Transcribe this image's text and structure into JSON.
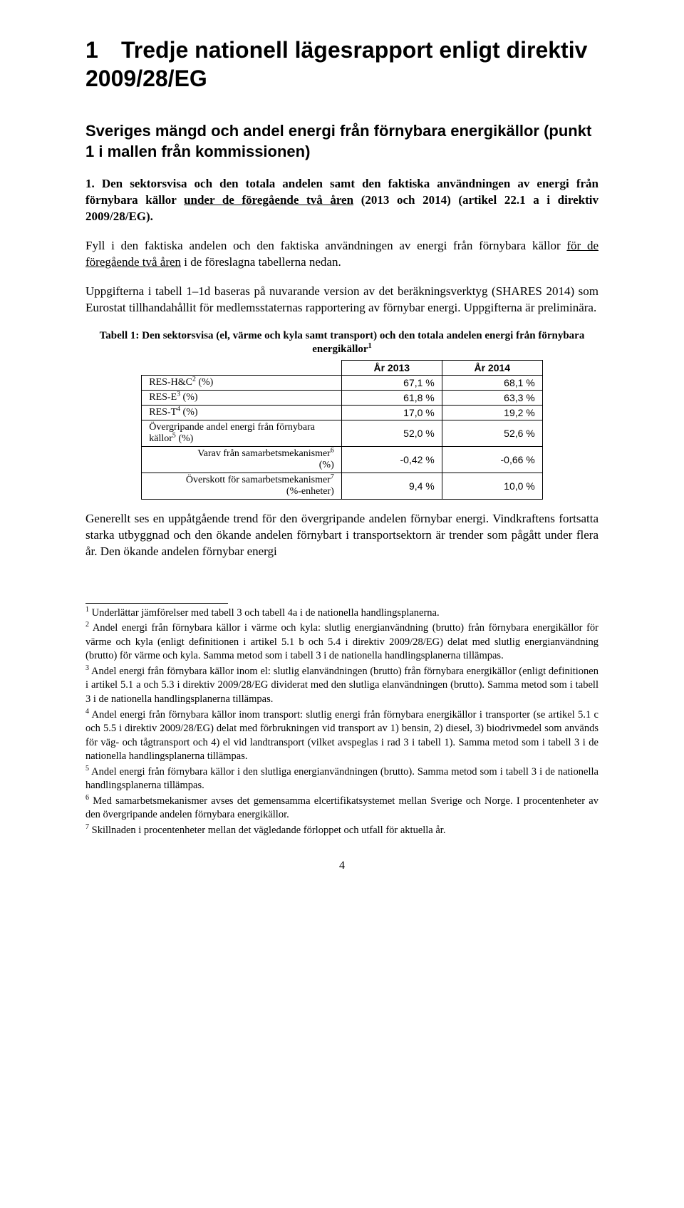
{
  "section_number": "1",
  "section_title_rest": "Tredje nationell lägesrapport enligt direktiv 2009/28/EG",
  "subheading": "Sveriges mängd och andel energi från förnybara energikällor (punkt 1 i mallen från kommissionen)",
  "question_lead": "1. Den sektorsvisa och den totala andelen samt den faktiska användningen av energi från förnybara källor ",
  "question_underlined": "under de föregående två åren",
  "question_tail": " (2013 och 2014) (artikel 22.1 a i direktiv 2009/28/EG).",
  "para2_lead": "Fyll i den faktiska andelen och den faktiska användningen av energi från förnybara källor ",
  "para2_underlined": "för de föregående två åren",
  "para2_tail": " i de föreslagna tabellerna nedan.",
  "para3": "Uppgifterna i tabell 1–1d baseras på nuvarande version av det beräkningsverktyg (SHARES 2014) som Eurostat tillhandahållit för medlemsstaternas rapportering av förnybar energi. Uppgifterna är preliminära.",
  "table": {
    "caption": "Tabell 1: Den sektorsvisa (el, värme och kyla samt transport) och den totala andelen energi från förnybara energikällor",
    "columns": [
      "",
      "År 2013",
      "År 2014"
    ],
    "rows": [
      {
        "label": "RES-H&C",
        "sup": "2",
        "suffix": " (%)",
        "v2013": "67,1 %",
        "v2014": "68,1 %",
        "indent": false
      },
      {
        "label": "RES-E",
        "sup": "3",
        "suffix": " (%)",
        "v2013": "61,8 %",
        "v2014": "63,3 %",
        "indent": false
      },
      {
        "label": "RES-T",
        "sup": "4",
        "suffix": " (%)",
        "v2013": "17,0 %",
        "v2014": "19,2 %",
        "indent": false
      },
      {
        "label": "Övergripande andel energi från förnybara källor",
        "sup": "5",
        "suffix": " (%)",
        "v2013": "52,0 %",
        "v2014": "52,6 %",
        "indent": false
      },
      {
        "label": "Varav från samarbetsmekanismer",
        "sup": "6",
        "suffix": " (%)",
        "v2013": "-0,42 %",
        "v2014": "-0,66 %",
        "indent": true
      },
      {
        "label": "Överskott för samarbetsmekanismer",
        "sup": "7",
        "suffix": " (%-enheter)",
        "v2013": "9,4 %",
        "v2014": "10,0 %",
        "indent": true
      }
    ]
  },
  "para_after_table": "Generellt ses en uppåtgående trend för den övergripande andelen förnybar energi. Vindkraftens fortsatta starka utbyggnad och den ökande andelen förnybart i transportsektorn är trender som pågått under flera år. Den ökande andelen förnybar energi",
  "footnotes": [
    {
      "n": "1",
      "text": " Underlättar jämförelser med tabell 3 och tabell 4a i de nationella handlingsplanerna."
    },
    {
      "n": "2",
      "text": " Andel energi från förnybara källor i värme och kyla: slutlig energianvändning (brutto) från förnybara energikällor för värme och kyla (enligt definitionen i artikel 5.1 b och 5.4 i direktiv 2009/28/EG) delat med slutlig energianvändning (brutto) för värme och kyla. Samma metod som i tabell 3 i de nationella handlingsplanerna tillämpas."
    },
    {
      "n": "3",
      "text": " Andel energi från förnybara källor inom el: slutlig elanvändningen (brutto) från förnybara energikällor (enligt definitionen i artikel 5.1 a och 5.3 i direktiv 2009/28/EG dividerat med den slutliga elanvändningen (brutto). Samma metod som i tabell 3 i de nationella handlingsplanerna tillämpas."
    },
    {
      "n": "4",
      "text": " Andel energi från förnybara källor inom transport: slutlig energi från förnybara energikällor i transporter (se artikel 5.1 c och 5.5 i direktiv 2009/28/EG) delat med förbrukningen vid transport av 1) bensin, 2) diesel, 3) biodrivmedel som används för väg- och tågtransport och 4) el vid landtransport (vilket avspeglas i rad 3 i tabell 1). Samma metod som i tabell 3 i de nationella handlingsplanerna tillämpas."
    },
    {
      "n": "5",
      "text": " Andel energi från förnybara källor i den slutliga energianvändningen (brutto). Samma metod som i tabell 3 i de nationella handlingsplanerna tillämpas."
    },
    {
      "n": "6",
      "text": " Med samarbetsmekanismer avses det gemensamma elcertifikatsystemet mellan Sverige och Norge. I procentenheter av den övergripande andelen förnybara energikällor."
    },
    {
      "n": "7",
      "text": " Skillnaden i procentenheter mellan det vägledande förloppet och utfall för aktuella år."
    }
  ],
  "page_number": "4"
}
